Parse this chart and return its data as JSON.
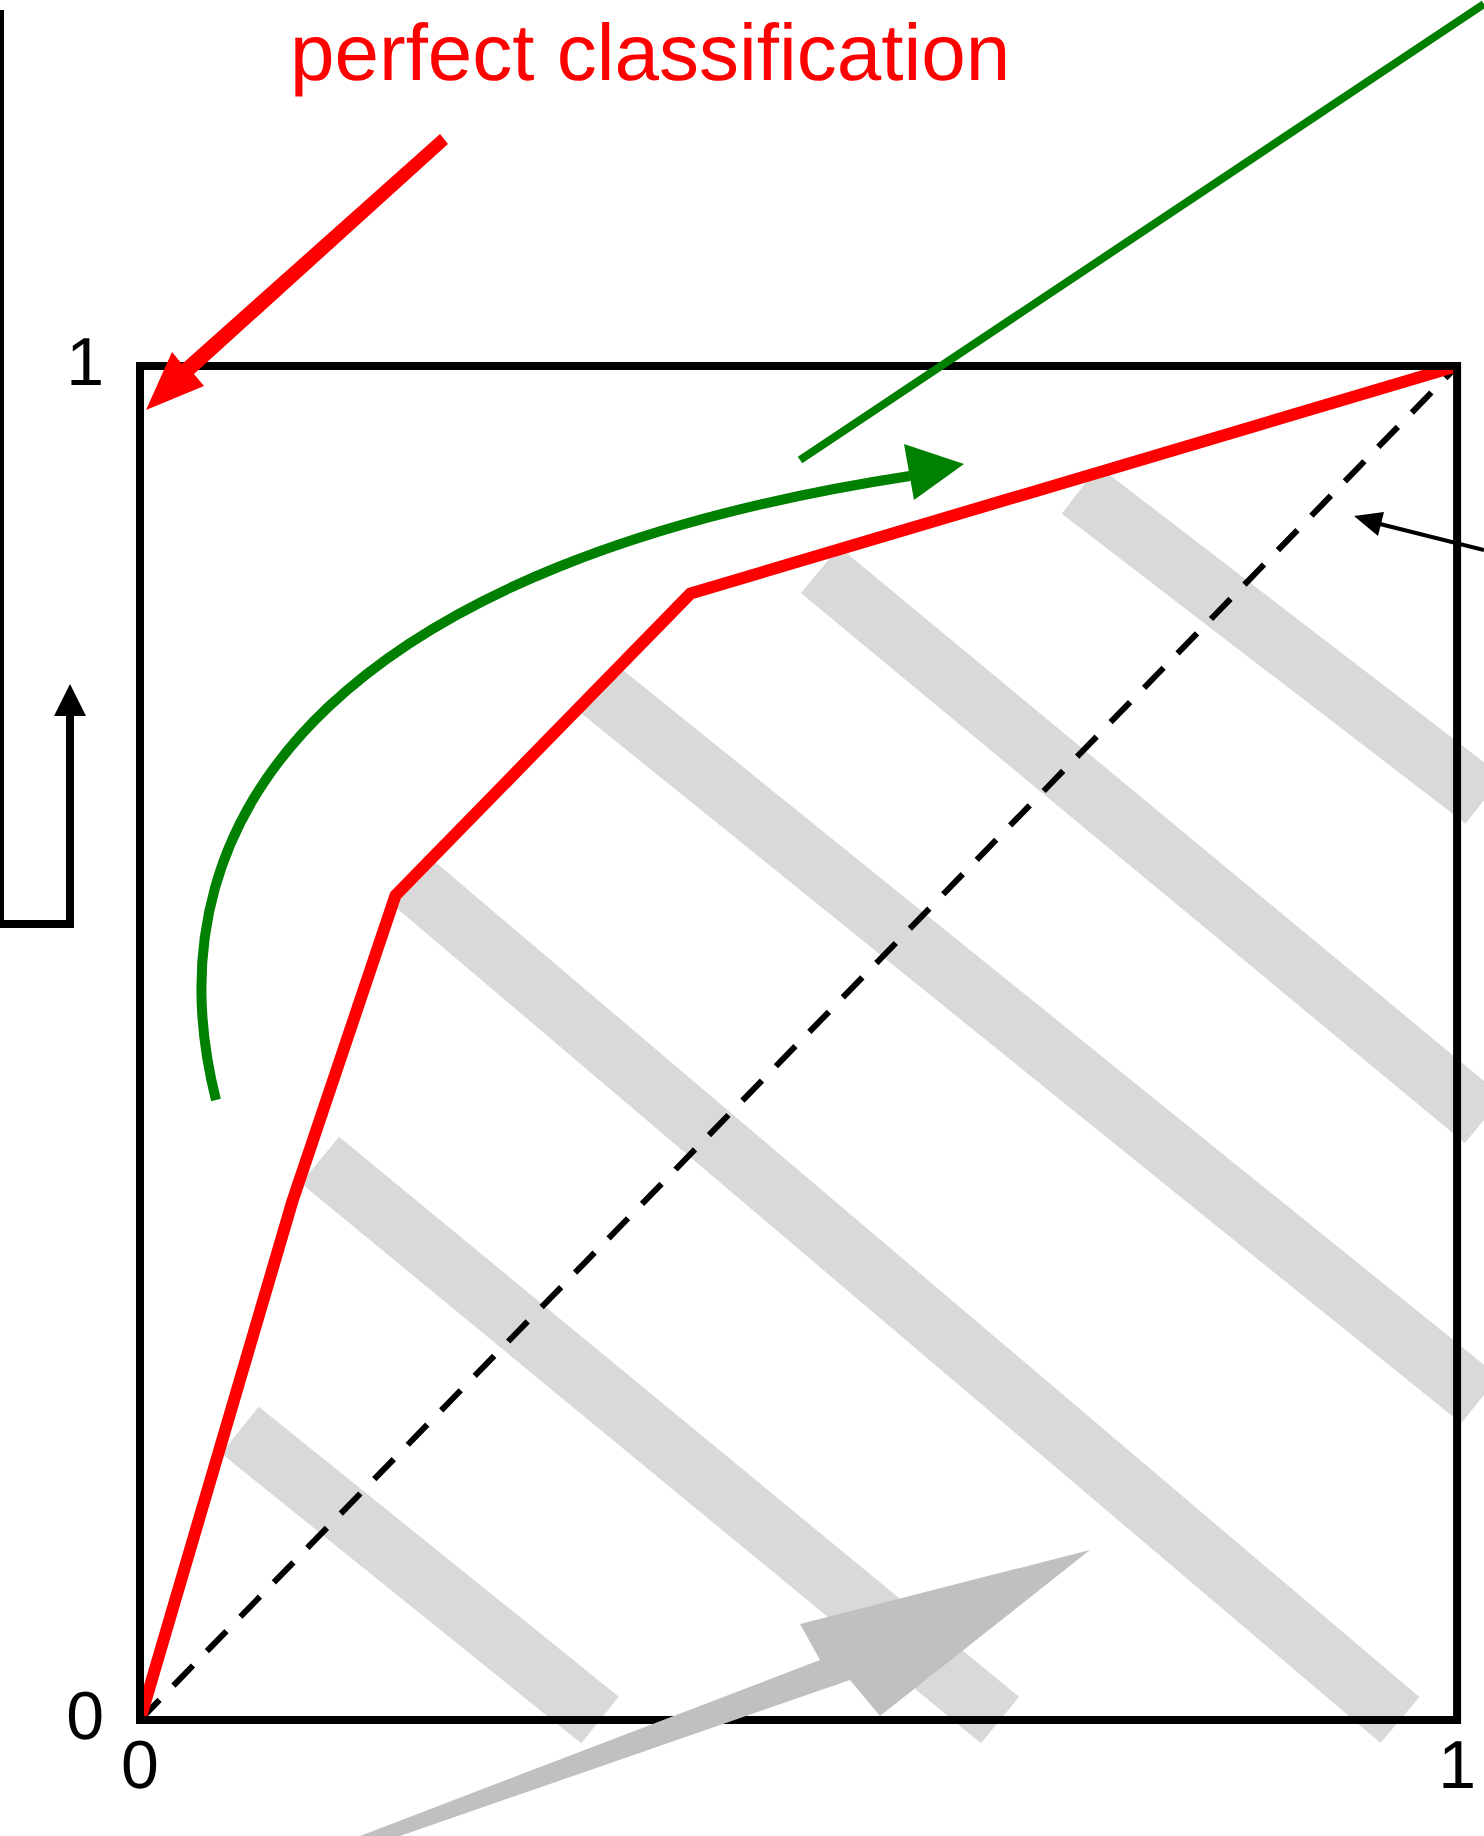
{
  "chart_data": {
    "type": "line",
    "xlim": [
      0,
      1
    ],
    "ylim": [
      0,
      1
    ],
    "xticks": [
      0,
      1
    ],
    "yticks": [
      0,
      1
    ],
    "marker": "none",
    "annotations": [
      "perfect classification"
    ],
    "series": [
      {
        "x": [
          0,
          0.116,
          0.194,
          0.418,
          1
        ],
        "values": [
          0,
          0.384,
          0.609,
          0.832,
          1
        ],
        "color": "#ff0000",
        "line_style": "solid"
      },
      {
        "x": [
          0,
          1
        ],
        "values": [
          0,
          1
        ],
        "color": "#000000",
        "line_style": "dashed"
      }
    ]
  }
}
